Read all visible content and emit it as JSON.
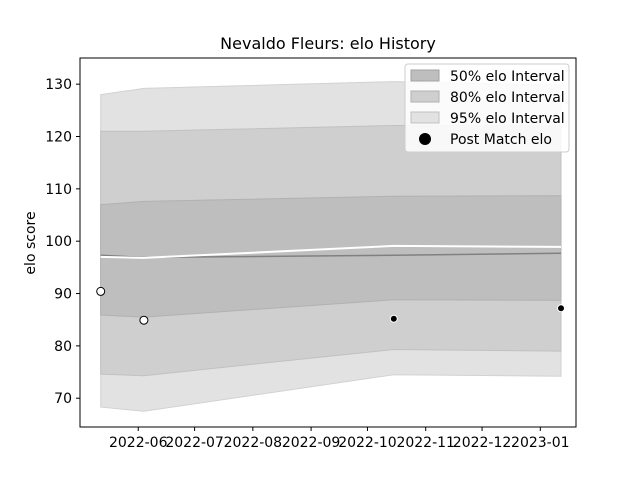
{
  "chart_data": {
    "type": "area",
    "title": "Nevaldo Fleurs: elo History",
    "xlabel": "",
    "ylabel": "elo score",
    "xlim": [
      "2022-05-01",
      "2023-01-20"
    ],
    "ylim": [
      64.5,
      135
    ],
    "x_ticks": [
      "2022-06",
      "2022-07",
      "2022-08",
      "2022-09",
      "2022-10",
      "2022-11",
      "2022-12",
      "2023-01"
    ],
    "y_ticks": [
      70,
      80,
      90,
      100,
      110,
      120,
      130
    ],
    "grid": false,
    "legend_position": "top-right",
    "x": [
      "2022-05-12",
      "2022-06-04",
      "2022-10-15",
      "2023-01-12"
    ],
    "bands": [
      {
        "name": "95% elo Interval",
        "color": "#e2e2e2",
        "lower": [
          68.3,
          67.5,
          74.5,
          74.2
        ],
        "upper": [
          128.0,
          129.2,
          130.5,
          129.8
        ]
      },
      {
        "name": "80% elo Interval",
        "color": "#cfcfcf",
        "lower": [
          74.6,
          74.3,
          79.3,
          79.0
        ],
        "upper": [
          121.0,
          121.0,
          122.1,
          122.0
        ]
      },
      {
        "name": "50% elo Interval",
        "color": "#bebebe",
        "lower": [
          85.9,
          85.5,
          88.8,
          88.7
        ],
        "upper": [
          107.0,
          107.6,
          108.6,
          108.7
        ]
      }
    ],
    "median_line": {
      "color": "#808080",
      "values": [
        97.3,
        96.9,
        97.3,
        97.7
      ]
    },
    "mean_line": {
      "color": "#ffffff",
      "values": [
        97.0,
        96.8,
        99.1,
        98.9
      ]
    },
    "points": {
      "name": "Post Match elo",
      "x": [
        "2022-05-12",
        "2022-06-04",
        "2022-10-15",
        "2023-01-12"
      ],
      "values": [
        90.4,
        84.9,
        85.2,
        87.2
      ],
      "fill": [
        "#ffffff",
        "#ffffff",
        "#000000",
        "#000000"
      ]
    }
  }
}
